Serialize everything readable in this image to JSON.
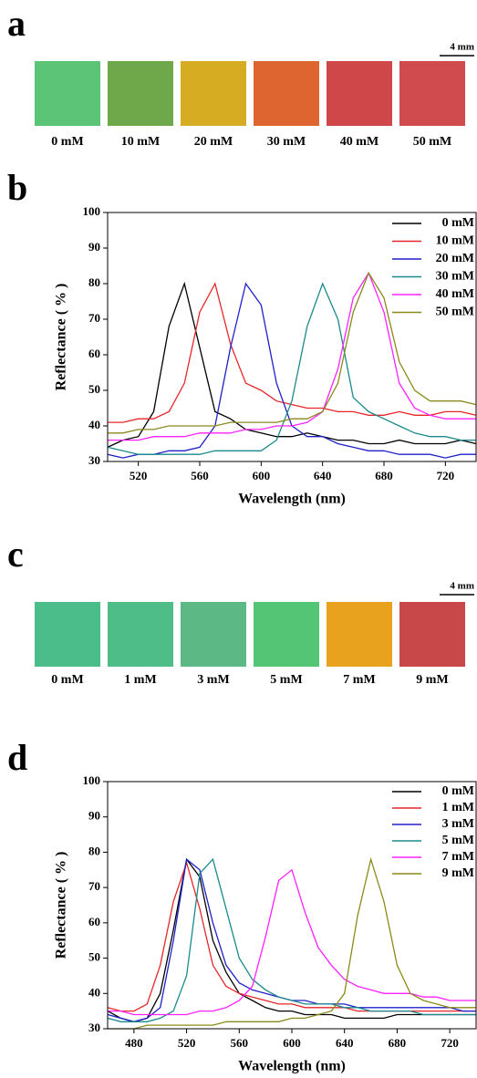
{
  "panel_labels": [
    "a",
    "b",
    "c",
    "d"
  ],
  "swatch_rows": [
    {
      "scale_bar": "4 mm",
      "swatches": [
        {
          "label": "0 mM",
          "color": "#5cc477"
        },
        {
          "label": "10 mM",
          "color": "#6ea84a"
        },
        {
          "label": "20 mM",
          "color": "#d6ad22"
        },
        {
          "label": "30 mM",
          "color": "#de6530"
        },
        {
          "label": "40 mM",
          "color": "#d0474a"
        },
        {
          "label": "50 mM",
          "color": "#cf4b4d"
        }
      ]
    },
    {
      "scale_bar": "4 mm",
      "swatches": [
        {
          "label": "0 mM",
          "color": "#4bbd8a"
        },
        {
          "label": "1 mM",
          "color": "#4ebd88"
        },
        {
          "label": "3 mM",
          "color": "#5cb985"
        },
        {
          "label": "5 mM",
          "color": "#54c574"
        },
        {
          "label": "7 mM",
          "color": "#e8a21e"
        },
        {
          "label": "9 mM",
          "color": "#c8484a"
        }
      ]
    }
  ],
  "chart_data": [
    {
      "type": "line",
      "x_label": "Wavelength (nm)",
      "y_label": "Reflectance ( % )",
      "legend": "upper right",
      "xlim": [
        500,
        740
      ],
      "xticks": [
        520,
        560,
        600,
        640,
        680,
        720
      ],
      "ylim": [
        30,
        100
      ],
      "yticks": [
        30,
        40,
        50,
        60,
        70,
        80,
        90,
        100
      ],
      "x": [
        500,
        510,
        520,
        530,
        540,
        550,
        560,
        570,
        580,
        590,
        600,
        610,
        620,
        630,
        640,
        650,
        660,
        670,
        680,
        690,
        700,
        710,
        720,
        730,
        740
      ],
      "series": [
        {
          "name": "0 mM",
          "color": "#000000",
          "values": [
            34,
            36,
            37,
            44,
            68,
            80,
            62,
            44,
            42,
            39,
            38,
            37,
            37,
            38,
            37,
            36,
            36,
            35,
            35,
            36,
            35,
            35,
            35,
            36,
            35
          ]
        },
        {
          "name": "10 mM",
          "color": "#e8262a",
          "values": [
            41,
            41,
            42,
            42,
            44,
            52,
            72,
            80,
            63,
            52,
            50,
            47,
            46,
            45,
            45,
            44,
            44,
            43,
            43,
            44,
            43,
            43,
            44,
            44,
            43
          ]
        },
        {
          "name": "20 mM",
          "color": "#2020c8",
          "values": [
            32,
            31,
            32,
            32,
            33,
            33,
            34,
            40,
            62,
            80,
            74,
            52,
            40,
            37,
            37,
            35,
            34,
            33,
            33,
            32,
            32,
            32,
            31,
            32,
            32
          ]
        },
        {
          "name": "30 mM",
          "color": "#1a8a8a",
          "values": [
            34,
            33,
            32,
            32,
            32,
            32,
            32,
            33,
            33,
            33,
            33,
            36,
            47,
            68,
            80,
            70,
            48,
            44,
            42,
            40,
            38,
            37,
            37,
            36,
            36
          ]
        },
        {
          "name": "40 mM",
          "color": "#ff20ff",
          "values": [
            36,
            36,
            36,
            37,
            37,
            37,
            38,
            38,
            38,
            39,
            39,
            40,
            40,
            41,
            44,
            56,
            76,
            83,
            72,
            52,
            45,
            43,
            42,
            42,
            42
          ]
        },
        {
          "name": "50 mM",
          "color": "#8a8a1a",
          "values": [
            38,
            38,
            39,
            39,
            40,
            40,
            40,
            40,
            41,
            41,
            41,
            41,
            42,
            42,
            44,
            52,
            72,
            83,
            76,
            58,
            50,
            47,
            47,
            47,
            46
          ]
        }
      ]
    },
    {
      "type": "line",
      "x_label": "Wavelength (nm)",
      "y_label": "Reflectance ( % )",
      "legend": "upper right",
      "xlim": [
        460,
        740
      ],
      "xticks": [
        480,
        520,
        560,
        600,
        640,
        680,
        720
      ],
      "ylim": [
        30,
        100
      ],
      "yticks": [
        30,
        40,
        50,
        60,
        70,
        80,
        90,
        100
      ],
      "x": [
        460,
        470,
        480,
        490,
        500,
        510,
        520,
        530,
        540,
        550,
        560,
        570,
        580,
        590,
        600,
        610,
        620,
        630,
        640,
        650,
        660,
        670,
        680,
        690,
        700,
        710,
        720,
        730,
        740
      ],
      "series": [
        {
          "name": "0 mM",
          "color": "#000000",
          "values": [
            35,
            33,
            32,
            33,
            40,
            58,
            78,
            73,
            55,
            46,
            40,
            38,
            36,
            35,
            35,
            34,
            34,
            34,
            33,
            33,
            33,
            33,
            34,
            34,
            34,
            34,
            34,
            34,
            34
          ]
        },
        {
          "name": "1 mM",
          "color": "#e8262a",
          "values": [
            36,
            35,
            35,
            37,
            48,
            66,
            77,
            64,
            48,
            42,
            40,
            39,
            38,
            37,
            37,
            36,
            36,
            36,
            36,
            35,
            35,
            35,
            35,
            35,
            35,
            35,
            35,
            35,
            35
          ]
        },
        {
          "name": "3 mM",
          "color": "#2020c8",
          "values": [
            34,
            33,
            32,
            33,
            36,
            55,
            78,
            75,
            60,
            48,
            43,
            41,
            40,
            39,
            38,
            38,
            37,
            37,
            37,
            36,
            36,
            36,
            36,
            36,
            36,
            36,
            36,
            35,
            35
          ]
        },
        {
          "name": "5 mM",
          "color": "#1a8a8a",
          "values": [
            33,
            32,
            32,
            32,
            33,
            35,
            45,
            74,
            78,
            64,
            50,
            44,
            41,
            39,
            38,
            37,
            37,
            37,
            36,
            36,
            35,
            35,
            35,
            35,
            34,
            34,
            34,
            34,
            34
          ]
        },
        {
          "name": "7 mM",
          "color": "#ff20ff",
          "values": [
            35,
            35,
            34,
            34,
            34,
            34,
            34,
            35,
            35,
            36,
            38,
            42,
            56,
            72,
            75,
            63,
            53,
            48,
            44,
            42,
            41,
            40,
            40,
            40,
            39,
            39,
            38,
            38,
            38
          ]
        },
        {
          "name": "9 mM",
          "color": "#8a8a1a",
          "values": [
            30,
            30,
            30,
            31,
            31,
            31,
            31,
            31,
            31,
            32,
            32,
            32,
            32,
            32,
            33,
            33,
            34,
            35,
            40,
            62,
            78,
            66,
            48,
            40,
            38,
            37,
            36,
            36,
            36
          ]
        }
      ]
    }
  ]
}
